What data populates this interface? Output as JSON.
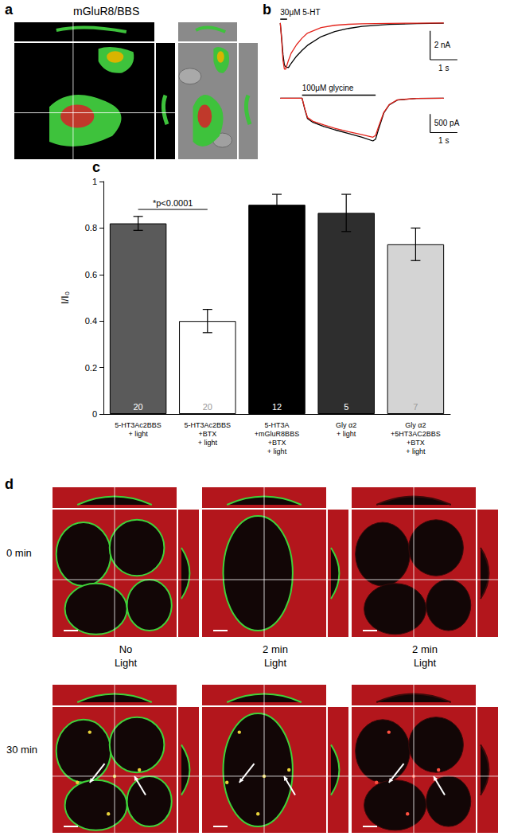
{
  "panel_a": {
    "label": "a",
    "title": "mGluR8/BBS"
  },
  "chart_data": [
    {
      "panel": "b",
      "type": "line",
      "tick_labels": false,
      "x": [
        0,
        0.05,
        0.1,
        0.15,
        0.2,
        0.3,
        0.4,
        0.6,
        0.8,
        1,
        1.5,
        2,
        2.5,
        3,
        4,
        5,
        6
      ],
      "series": [
        {
          "color": "#000000",
          "values": [
            0,
            -1,
            -2.2,
            -2.9,
            -3.05,
            -3.1,
            -2.8,
            -2.3,
            -1.9,
            -1.55,
            -0.95,
            -0.6,
            -0.38,
            -0.24,
            -0.1,
            -0.04,
            -0.02
          ]
        },
        {
          "color": "#e3241c",
          "values": [
            0,
            -1.2,
            -2.6,
            -3.2,
            -3.2,
            -2.6,
            -2.1,
            -1.5,
            -1.05,
            -0.7,
            -0.32,
            -0.16,
            -0.09,
            -0.06,
            -0.03,
            -0.01,
            0
          ]
        }
      ],
      "xlim": [
        -0.3,
        7
      ],
      "ylim": [
        -3.6,
        0.6
      ],
      "application": {
        "label": "30μM 5-HT",
        "start": 0,
        "end": 0.25
      },
      "scale_bars": {
        "y": {
          "value": 2,
          "label": "2 nA"
        },
        "x": {
          "value": 1,
          "label": "1 s"
        }
      }
    },
    {
      "type": "line",
      "tick_labels": false,
      "x": [
        0,
        0.8,
        0.9,
        1,
        1.2,
        1.6,
        2,
        2.5,
        3,
        3.4,
        3.5,
        3.6,
        3.8,
        4,
        4.3,
        5,
        6
      ],
      "series": [
        {
          "color": "#000000",
          "values": [
            0,
            0,
            -300,
            -550,
            -650,
            -760,
            -850,
            -950,
            -1050,
            -1150,
            -1100,
            -850,
            -400,
            -180,
            -50,
            -5,
            0
          ]
        },
        {
          "color": "#e3241c",
          "values": [
            0,
            0,
            -280,
            -520,
            -620,
            -720,
            -810,
            -900,
            -980,
            -1050,
            -1000,
            -780,
            -380,
            -170,
            -45,
            -5,
            0
          ]
        }
      ],
      "xlim": [
        -0.3,
        7
      ],
      "ylim": [
        -1300,
        200
      ],
      "application": {
        "label": "100μM glycine",
        "start": 0.8,
        "end": 3.5
      },
      "scale_bars": {
        "y": {
          "value": 500,
          "label": "500 pA"
        },
        "x": {
          "value": 1,
          "label": "1 s"
        }
      }
    },
    {
      "panel": "c",
      "type": "bar",
      "categories": [
        "5-HT3Ac2BBS\n+ light",
        "5-HT3Ac2BBS\n+BTX\n+ light",
        "5-HT3A\n+mGluR8BBS\n+BTX\n+ light",
        "Gly α2\n+ light",
        "Gly α2\n+5HT3AC2BBS\n+BTX\n+ light"
      ],
      "values": [
        0.82,
        0.4,
        0.9,
        0.865,
        0.73
      ],
      "errors": [
        0.03,
        0.05,
        0.045,
        0.08,
        0.07
      ],
      "n": [
        20,
        20,
        12,
        5,
        7
      ],
      "colors": [
        "#5a5a5a",
        "#ffffff",
        "#000000",
        "#2e2e2e",
        "#d4d4d4"
      ],
      "ylabel": "I/I₀",
      "ylim": [
        0,
        1
      ],
      "yticks": [
        0,
        0.2,
        0.4,
        0.6,
        0.8,
        1
      ],
      "grid": false,
      "annotations": [
        {
          "text": "*p<0.0001",
          "between": [
            0,
            1
          ]
        }
      ]
    }
  ],
  "panel_d": {
    "label": "d",
    "rows": [
      "0 min",
      "30 min"
    ],
    "columns": [
      [
        "No",
        "Light"
      ],
      [
        "2 min",
        "Light"
      ],
      [
        "2 min",
        "Light"
      ]
    ]
  }
}
